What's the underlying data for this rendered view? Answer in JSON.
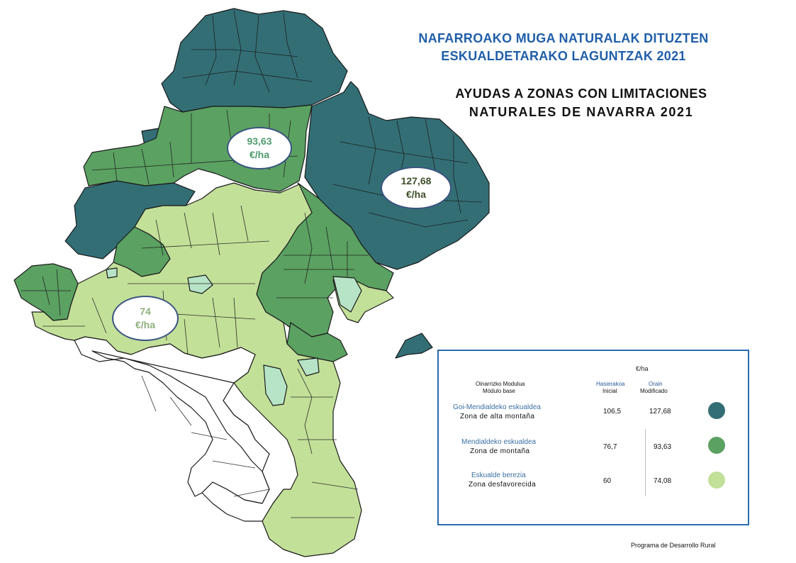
{
  "title_eu": [
    "NAFARROAKO MUGA NATURALAK DITUZTEN",
    "ESKUALDETARAKO  LAGUNTZAK 2021"
  ],
  "title_es": [
    "AYUDAS A ZONAS CON LIMITACIONES",
    "NATURALES DE  NAVARRA  2021"
  ],
  "bubbles": {
    "alta": {
      "value": "127,68",
      "unit": "€/ha"
    },
    "montana": {
      "value": "93,63",
      "unit": "€/ha"
    },
    "desf": {
      "value": "74",
      "unit": "€/ha"
    }
  },
  "legend": {
    "unit": "€/ha",
    "col_base_eu": "Oinarrizko Modulua",
    "col_base_es": "Módulo base",
    "col_initial_eu": "Hasierakoa",
    "col_initial_es": "Inicial",
    "col_modified_eu": "Orain",
    "col_modified_es": "Modificado",
    "rows": [
      {
        "name_eu": "Goi-Mendialdeko  eskualdea",
        "name_es": "Zona de alta montaña",
        "initial": "106,5",
        "modified": "127,68",
        "color": "#336e75"
      },
      {
        "name_eu": "Mendialdeko  eskualdea",
        "name_es": "Zona de montaña",
        "initial": "76,7",
        "modified": "93,63",
        "color": "#5ba162"
      },
      {
        "name_eu": "Eskualde  berezia",
        "name_es": "Zona desfavorecida",
        "initial": "60",
        "modified": "74,08",
        "color": "#c3e099"
      }
    ]
  },
  "colors": {
    "alta": "#336e75",
    "montana": "#5ba162",
    "desf": "#c3e099",
    "excluded": "#ffffff",
    "mint": "#b7e4c7",
    "border": "#1a1a1a"
  },
  "footer": "Programa   de Desarrollo Rural"
}
